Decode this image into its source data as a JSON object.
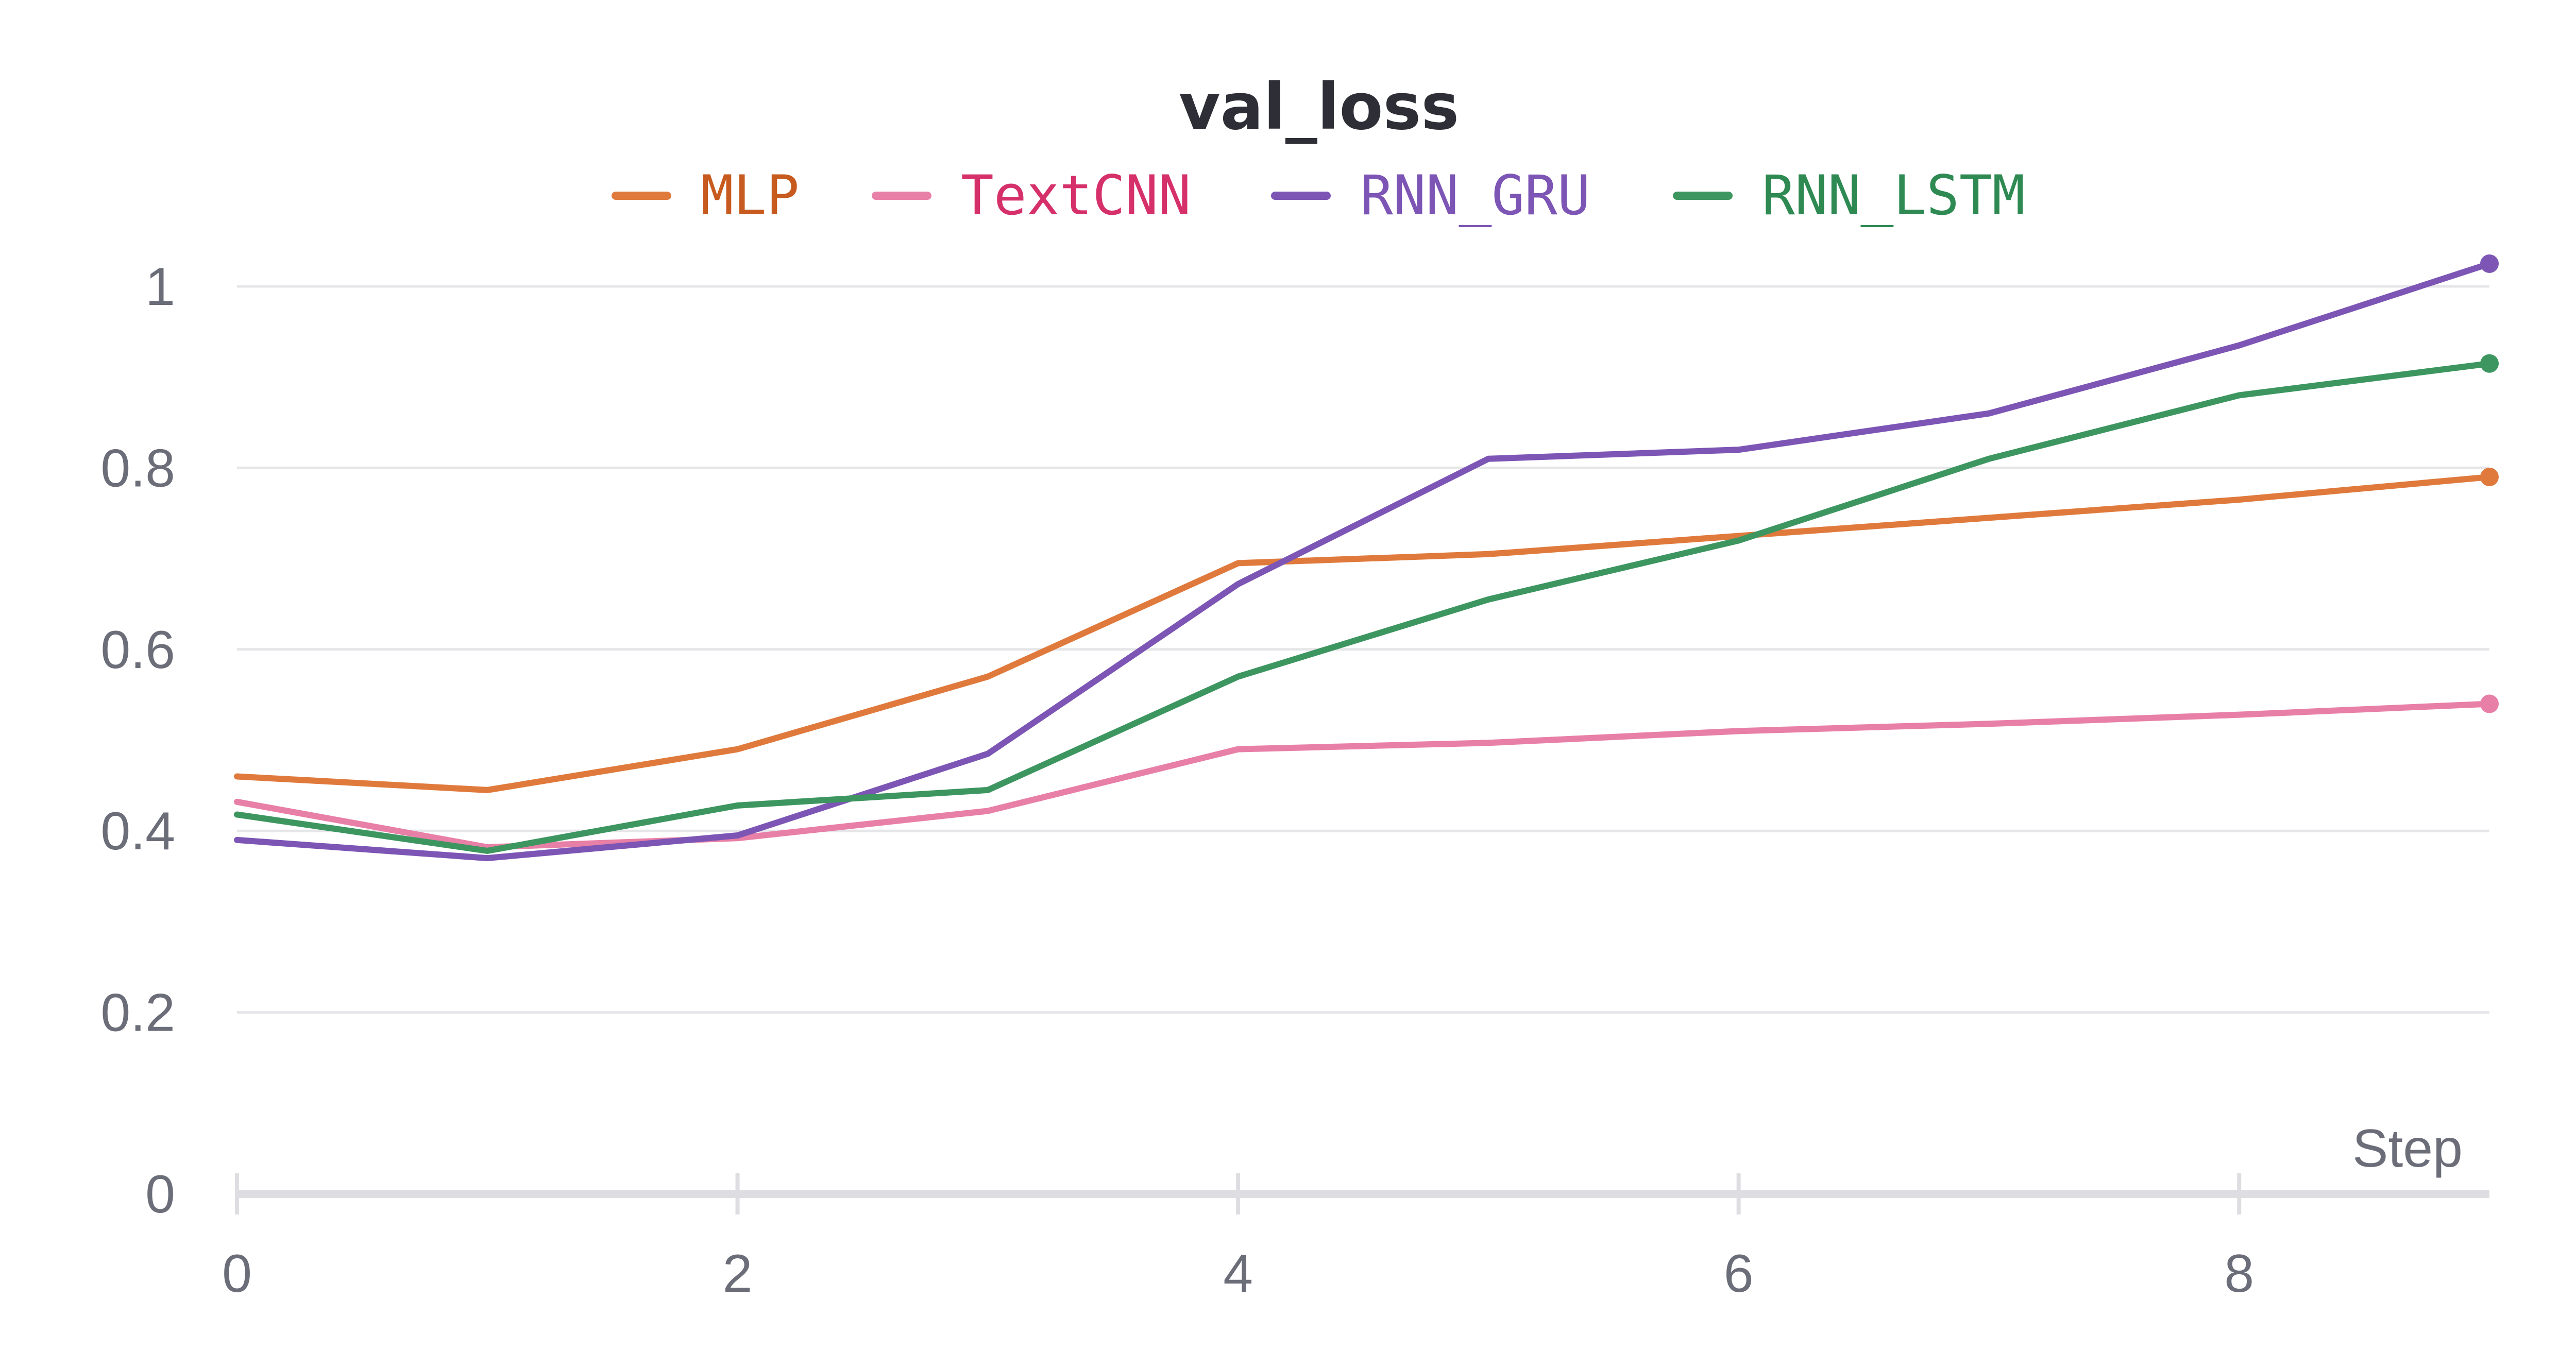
{
  "chart_data": {
    "type": "line",
    "title": "val_loss",
    "xlabel": "Step",
    "ylabel": "",
    "x": [
      0,
      1,
      2,
      3,
      4,
      5,
      6,
      7,
      8,
      9
    ],
    "xlim": [
      0,
      9
    ],
    "ylim": [
      0,
      1.0
    ],
    "x_ticks": [
      "0",
      "2",
      "4",
      "6",
      "8"
    ],
    "y_ticks": [
      "0",
      "0.2",
      "0.4",
      "0.6",
      "0.8",
      "1"
    ],
    "grid": true,
    "legend_position": "top",
    "series": [
      {
        "name": "MLP",
        "color": "#e07a3c",
        "label_color": "#c75a1e",
        "values": [
          0.46,
          0.445,
          0.49,
          0.57,
          0.695,
          0.705,
          0.725,
          0.745,
          0.765,
          0.79
        ]
      },
      {
        "name": "TextCNN",
        "color": "#e87fa6",
        "label_color": "#d6306a",
        "values": [
          0.432,
          0.382,
          0.392,
          0.422,
          0.49,
          0.497,
          0.51,
          0.518,
          0.528,
          0.54
        ]
      },
      {
        "name": "RNN_GRU",
        "color": "#7c55b5",
        "label_color": "#7c55b5",
        "values": [
          0.39,
          0.37,
          0.395,
          0.485,
          0.672,
          0.81,
          0.82,
          0.86,
          0.935,
          1.025
        ]
      },
      {
        "name": "RNN_LSTM",
        "color": "#3d9660",
        "label_color": "#2e8a52",
        "values": [
          0.418,
          0.378,
          0.428,
          0.445,
          0.57,
          0.655,
          0.72,
          0.81,
          0.88,
          0.915
        ]
      }
    ]
  }
}
